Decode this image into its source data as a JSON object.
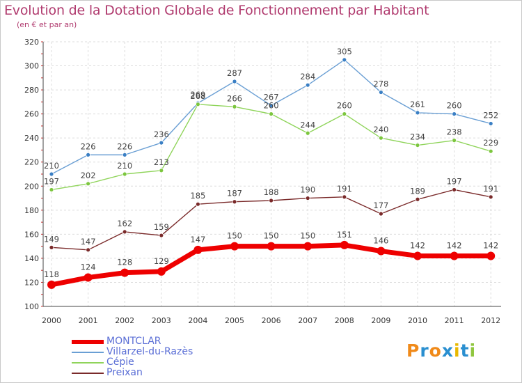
{
  "title": "Evolution de la Dotation Globale de Fonctionnement par Habitant",
  "subtitle": "(en € et par an)",
  "chart_data": {
    "type": "line",
    "title": "Evolution de la Dotation Globale de Fonctionnement par Habitant",
    "subtitle": "(en € et par an)",
    "xlabel": "",
    "ylabel": "",
    "ylim": [
      100,
      320
    ],
    "yticks": [
      100,
      120,
      140,
      160,
      180,
      200,
      220,
      240,
      260,
      280,
      300,
      320
    ],
    "grid": true,
    "legend_position": "bottom-left",
    "x": [
      "2000",
      "2001",
      "2002",
      "2003",
      "2004",
      "2005",
      "2006",
      "2007",
      "2008",
      "2009",
      "2010",
      "2011",
      "2012"
    ],
    "series": [
      {
        "name": "Villarzel-du-Razès",
        "color": "#6a9fd4",
        "marker": "#3a7fc4",
        "values": [
          210,
          226,
          226,
          236,
          269,
          287,
          267,
          284,
          305,
          278,
          261,
          260,
          252
        ]
      },
      {
        "name": "Cépie",
        "color": "#8fd45a",
        "marker": "#7cc63e",
        "values": [
          197,
          202,
          210,
          213,
          268,
          266,
          260,
          244,
          260,
          240,
          234,
          238,
          229
        ]
      },
      {
        "name": "Preixan",
        "color": "#7a2a2a",
        "marker": "#7a2a2a",
        "values": [
          149,
          147,
          162,
          159,
          185,
          187,
          188,
          190,
          191,
          177,
          189,
          197,
          191
        ]
      },
      {
        "name": "MONTCLAR",
        "color": "#ee0000",
        "marker": "#ee0000",
        "values": [
          118,
          124,
          128,
          129,
          147,
          150,
          150,
          150,
          151,
          146,
          142,
          142,
          142
        ]
      }
    ]
  },
  "legend": [
    {
      "label": "MONTCLAR",
      "color": "#ee0000"
    },
    {
      "label": "Villarzel-du-Razès",
      "color": "#6a9fd4"
    },
    {
      "label": "Cépie",
      "color": "#8fd45a"
    },
    {
      "label": "Preixan",
      "color": "#7a2a2a"
    }
  ],
  "logo": {
    "text": "Proxiti",
    "colors": [
      "#f08a1a",
      "#2a8fd0",
      "#f08a1a",
      "#2a8fd0",
      "#e8b800",
      "#2a8fd0",
      "#8fc63e"
    ]
  }
}
